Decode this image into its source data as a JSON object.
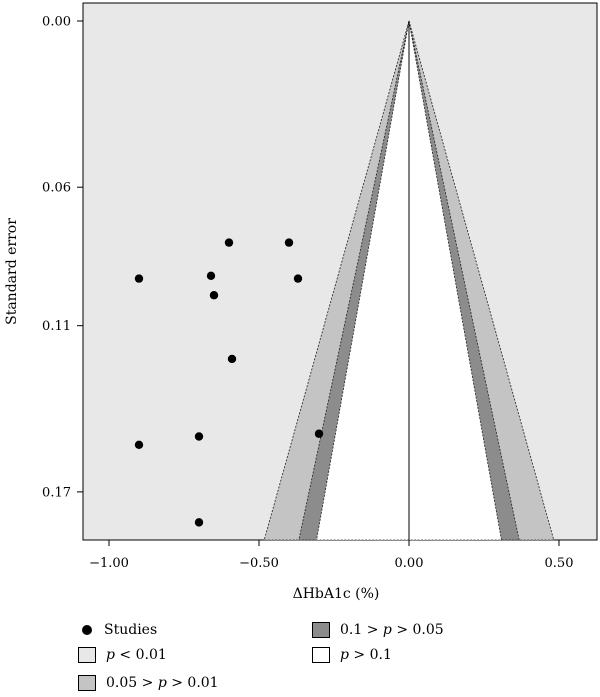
{
  "chart_data": {
    "type": "scatter",
    "title": "",
    "xlabel": "ΔHbA1c (%)",
    "ylabel": "Standard error",
    "xlim": [
      -1.1,
      0.65
    ],
    "ylim": [
      0.0,
      0.18
    ],
    "y_reversed": true,
    "x_ticks": [
      -1.0,
      -0.5,
      0.0,
      0.5
    ],
    "x_tick_labels": [
      "−1.00",
      "−0.50",
      "0.00",
      "0.50"
    ],
    "y_ticks": [
      0.0,
      0.06,
      0.11,
      0.17
    ],
    "y_tick_labels": [
      "0.00",
      "0.06",
      "0.11",
      "0.17"
    ],
    "grid": false,
    "legend_position": "bottom",
    "center_line_x": 0.0,
    "series": [
      {
        "name": "Studies",
        "points": [
          {
            "x": -0.6,
            "y": 0.08
          },
          {
            "x": -0.4,
            "y": 0.08
          },
          {
            "x": -0.9,
            "y": 0.093
          },
          {
            "x": -0.66,
            "y": 0.092
          },
          {
            "x": -0.37,
            "y": 0.093
          },
          {
            "x": -0.65,
            "y": 0.099
          },
          {
            "x": -0.59,
            "y": 0.122
          },
          {
            "x": -0.7,
            "y": 0.15
          },
          {
            "x": -0.3,
            "y": 0.149
          },
          {
            "x": -0.9,
            "y": 0.153
          },
          {
            "x": -0.7,
            "y": 0.181
          }
        ]
      }
    ],
    "contour_z": [
      {
        "label": "p < 0.01",
        "z": 99
      },
      {
        "label": "0.05 > p > 0.01",
        "z": 2.576
      },
      {
        "label": "0.1 > p > 0.05",
        "z": 1.96
      },
      {
        "label": "p > 0.1",
        "z": 1.645
      }
    ],
    "colors": {
      "panel": "#e8e8e8",
      "band_001": "#e8e8e8",
      "band_005": "#c4c4c4",
      "band_010": "#8c8c8c",
      "band_inner": "#ffffff",
      "point": "#000000"
    }
  },
  "legend": {
    "studies": "Studies",
    "p001_prefix": "p",
    "p001_suffix": " < 0.01",
    "p005_prefix": "0.05 > ",
    "p005_mid": "p",
    "p005_suffix": " > 0.01",
    "p010_prefix": "0.1 > ",
    "p010_mid": "p",
    "p010_suffix": " > 0.05",
    "p_gt_prefix": "p",
    "p_gt_suffix": " > 0.1"
  }
}
